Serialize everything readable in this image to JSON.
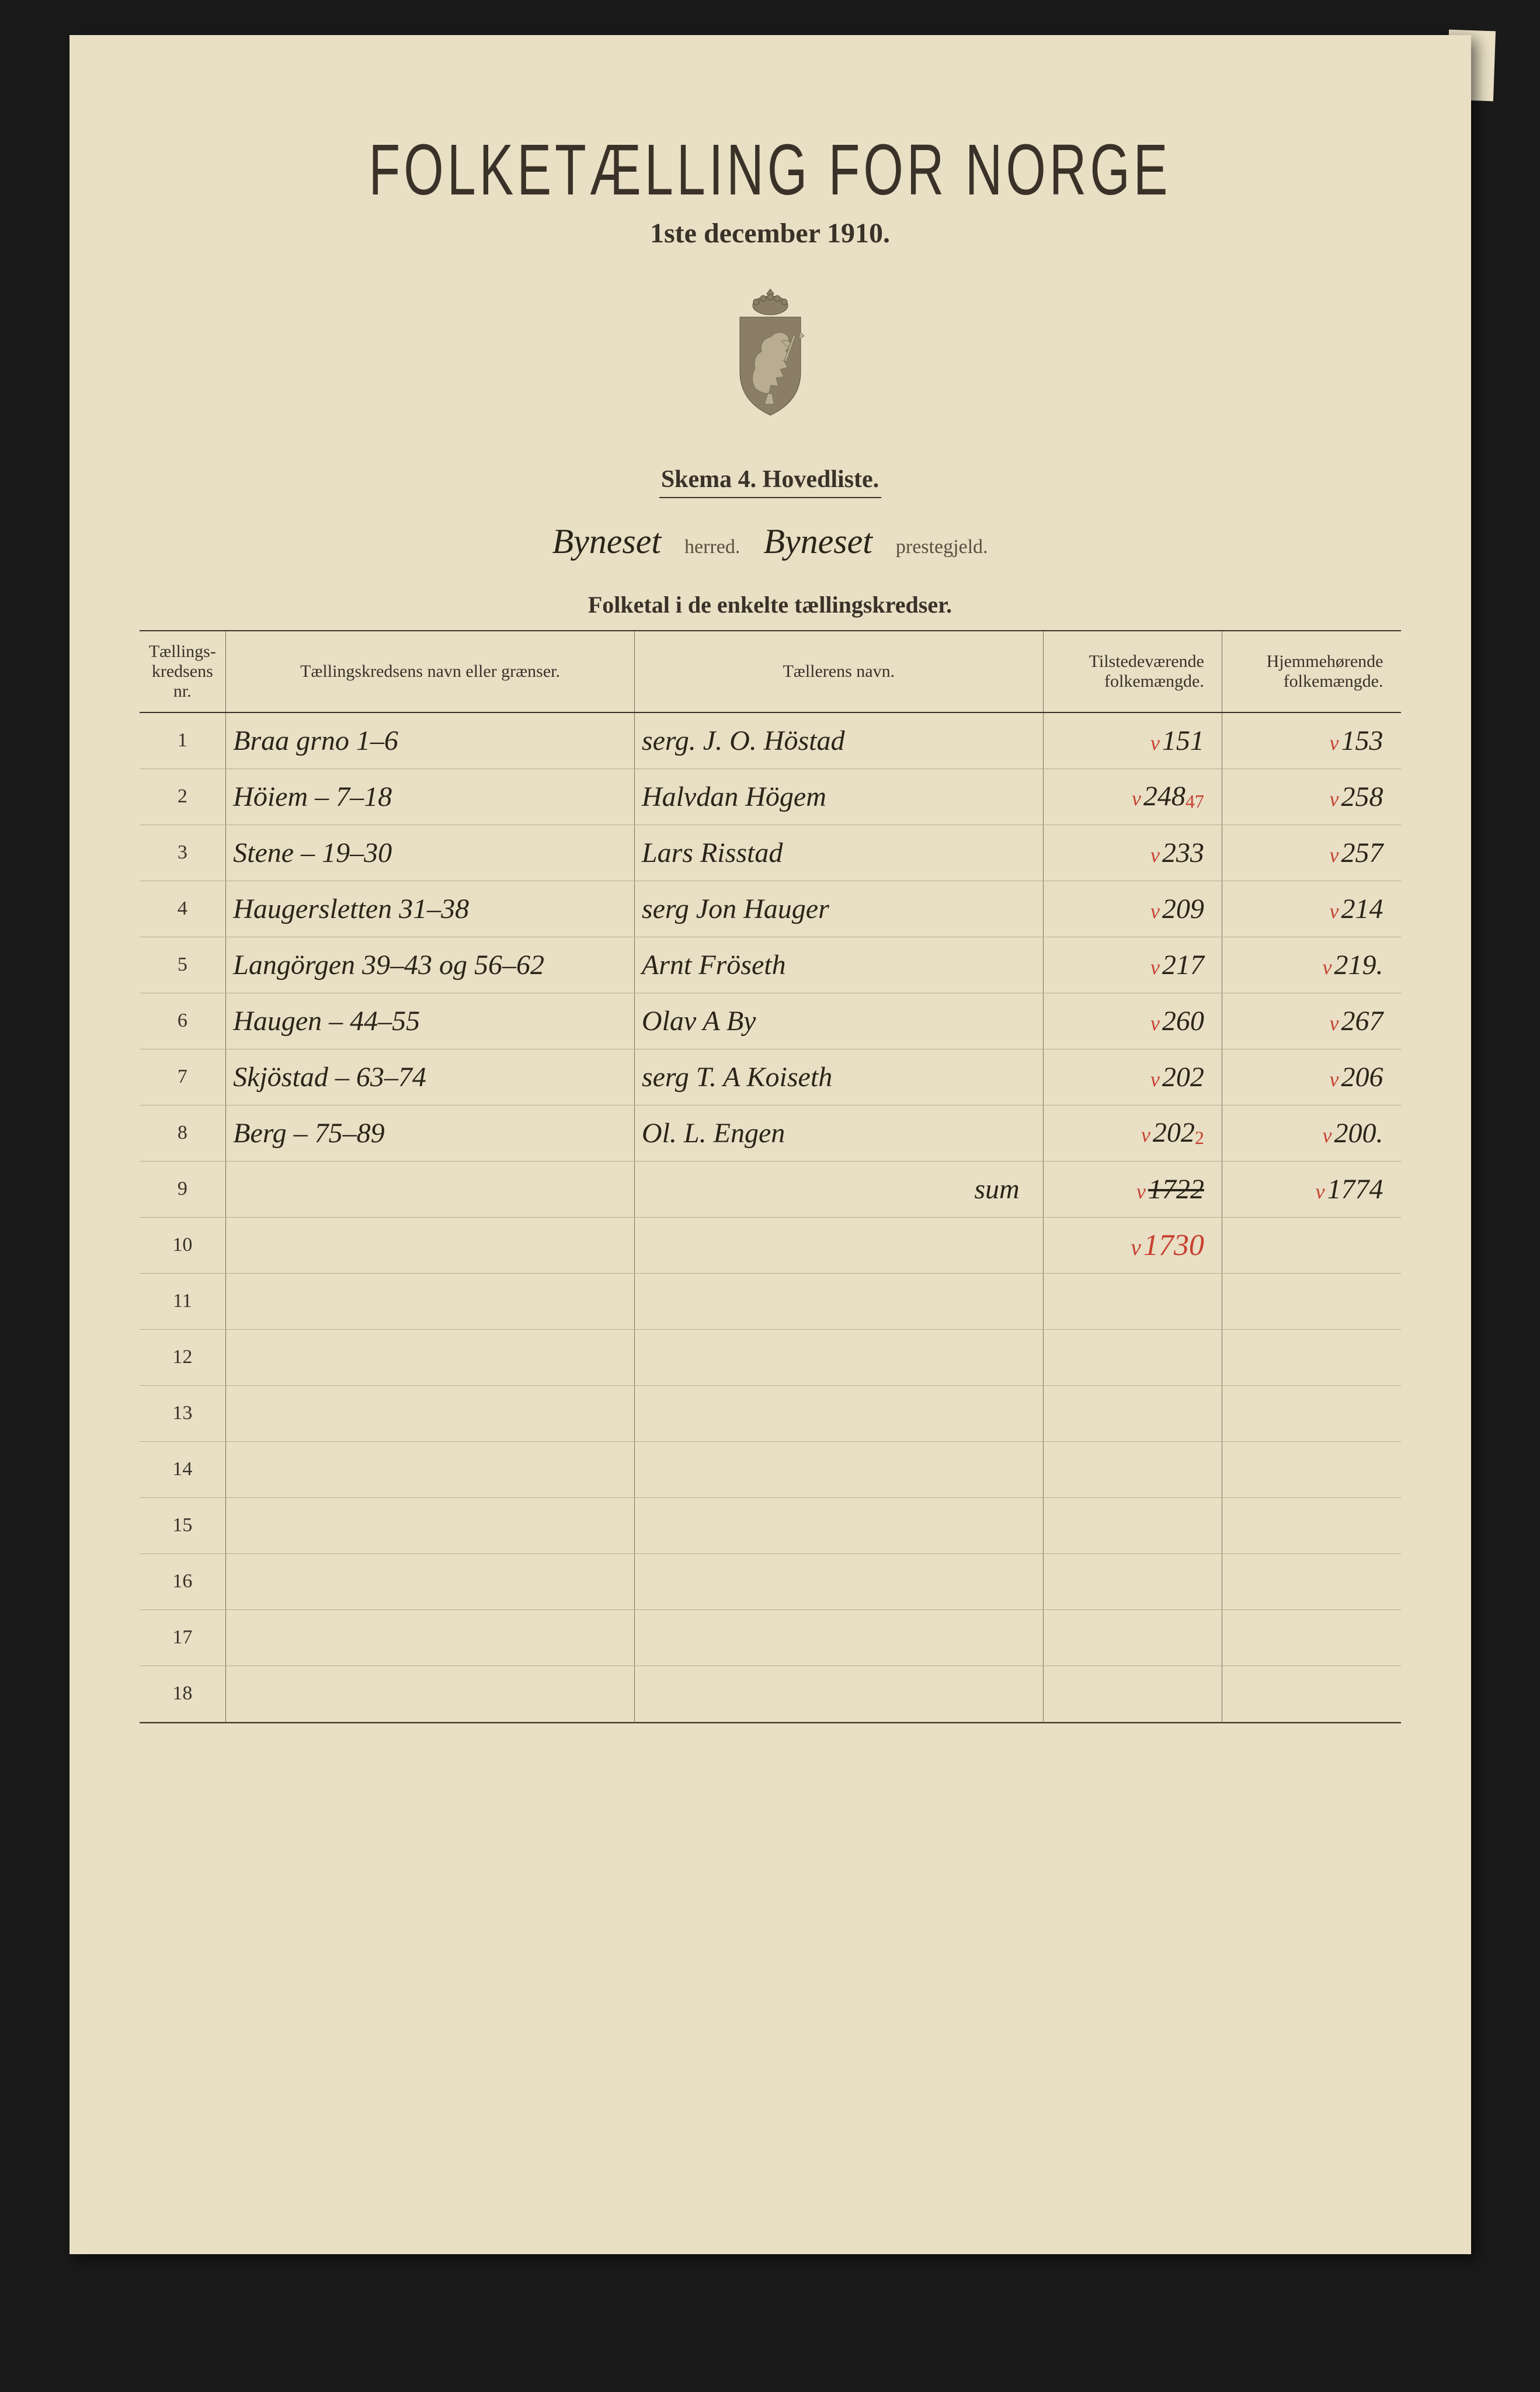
{
  "title": "FOLKETÆLLING FOR NORGE",
  "subtitle": "1ste december 1910.",
  "schema_label": "Skema 4.   Hovedliste.",
  "herred_hand": "Byneset",
  "herred_label": "herred.",
  "prestegjeld_hand": "Byneset",
  "prestegjeld_label": "prestegjeld.",
  "folketal_heading": "Folketal i de enkelte tællingskredser.",
  "columns": {
    "nr": "Tællings-\nkredsens nr.",
    "name": "Tællingskredsens navn eller grænser.",
    "taeller": "Tællerens navn.",
    "tilstede": "Tilstedeværende\nfolkemængde.",
    "hjemme": "Hjemmehørende\nfolkemængde."
  },
  "rows": [
    {
      "nr": "1",
      "name": "Braa  grno 1–6",
      "taeller": "serg. J. O. Höstad",
      "til": "151",
      "hjem": "153",
      "check": true
    },
    {
      "nr": "2",
      "name": "Höiem  –  7–18",
      "taeller": "Halvdan Högem",
      "til": "248",
      "til_anno": "47",
      "hjem": "258",
      "check": true
    },
    {
      "nr": "3",
      "name": "Stene  –  19–30",
      "taeller": "Lars Risstad",
      "til": "233",
      "hjem": "257",
      "check": true
    },
    {
      "nr": "4",
      "name": "Haugersletten 31–38",
      "taeller": "serg Jon Hauger",
      "til": "209",
      "hjem": "214",
      "check": true
    },
    {
      "nr": "5",
      "name": "Langörgen 39–43 og 56–62",
      "taeller": "Arnt Fröseth",
      "til": "217",
      "hjem": "219.",
      "check": true
    },
    {
      "nr": "6",
      "name": "Haugen – 44–55",
      "taeller": "Olav A By",
      "til": "260",
      "hjem": "267",
      "check": true
    },
    {
      "nr": "7",
      "name": "Skjöstad – 63–74",
      "taeller": "serg T. A Koiseth",
      "til": "202",
      "hjem": "206",
      "check": true
    },
    {
      "nr": "8",
      "name": "Berg  –  75–89",
      "taeller": "Ol. L. Engen",
      "til": "202",
      "til_anno": "2",
      "hjem": "200.",
      "check": true
    },
    {
      "nr": "9",
      "name": "",
      "taeller": "sum",
      "til": "1722",
      "til_strike": true,
      "hjem": "1774",
      "check": true
    },
    {
      "nr": "10",
      "name": "",
      "taeller": "",
      "til_red": "1730",
      "hjem": ""
    },
    {
      "nr": "11",
      "name": "",
      "taeller": "",
      "til": "",
      "hjem": ""
    },
    {
      "nr": "12",
      "name": "",
      "taeller": "",
      "til": "",
      "hjem": ""
    },
    {
      "nr": "13",
      "name": "",
      "taeller": "",
      "til": "",
      "hjem": ""
    },
    {
      "nr": "14",
      "name": "",
      "taeller": "",
      "til": "",
      "hjem": ""
    },
    {
      "nr": "15",
      "name": "",
      "taeller": "",
      "til": "",
      "hjem": ""
    },
    {
      "nr": "16",
      "name": "",
      "taeller": "",
      "til": "",
      "hjem": ""
    },
    {
      "nr": "17",
      "name": "",
      "taeller": "",
      "til": "",
      "hjem": ""
    },
    {
      "nr": "18",
      "name": "",
      "taeller": "",
      "til": "",
      "hjem": ""
    }
  ],
  "style": {
    "page_bg": "#e8dfc5",
    "body_bg": "#1a1a1a",
    "text_color": "#3a3228",
    "hand_color": "#2a2418",
    "red_color": "#c84030",
    "border_color": "#7a6f58",
    "row_border": "#b8ad90",
    "title_fontsize": 88,
    "subtitle_fontsize": 48,
    "schema_fontsize": 42,
    "herred_hand_fontsize": 60,
    "herred_label_fontsize": 34,
    "folketal_fontsize": 40,
    "th_fontsize": 30,
    "row_nr_fontsize": 34,
    "hw_fontsize": 48
  }
}
